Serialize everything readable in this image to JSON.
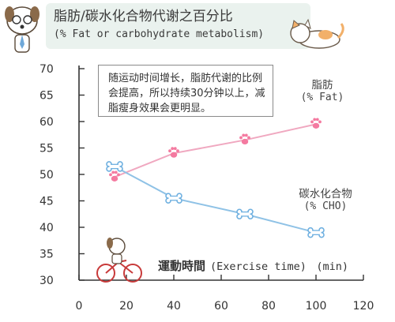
{
  "chart_data": {
    "type": "line",
    "title": "脂肪/碳水化合物代谢之百分比",
    "subtitle": "(% Fat or carbohydrate metabolism)",
    "xlabel": "運動時間",
    "xlabel_en": "(Exercise time)",
    "xunit": "(min)",
    "ylabel": "",
    "x_ticks": [
      0,
      20,
      40,
      60,
      80,
      100,
      120
    ],
    "y_ticks": [
      30,
      35,
      40,
      45,
      50,
      55,
      60,
      65,
      70
    ],
    "xlim": [
      0,
      120
    ],
    "ylim": [
      30,
      70
    ],
    "grid": false,
    "series": [
      {
        "name": "脂肪",
        "unit_label": "(% Fat)",
        "color": "#f0a8c0",
        "marker_color": "#f47aa0",
        "marker": "paw",
        "x": [
          15,
          40,
          70,
          100
        ],
        "y": [
          49.5,
          54,
          56.5,
          59.5
        ]
      },
      {
        "name": "碳水化合物",
        "unit_label": "(% CHO)",
        "color": "#8fc2e6",
        "marker_color": "#6fb0e0",
        "marker": "bone",
        "x": [
          15,
          40,
          70,
          100
        ],
        "y": [
          51.5,
          45.5,
          42.5,
          39
        ]
      }
    ],
    "annotation": "随运动时间增长，脂肪代谢的比例会提高，所以持续30分钟以上，减脂瘦身效果会更明显。"
  },
  "colors": {
    "header_bg": "#eaf2ee",
    "axis": "#333333",
    "fat": "#f0a8c0",
    "cho": "#8fc2e6"
  },
  "icons": {
    "header_left": "dog-with-glasses-icon",
    "header_right": "cat-icon",
    "cyclist": "dog-on-bicycle-icon"
  }
}
